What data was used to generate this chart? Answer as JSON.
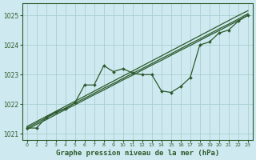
{
  "title": "Graphe pression niveau de la mer (hPa)",
  "background_color": "#ceeaf0",
  "grid_color": "#aacfcf",
  "line_color": "#2d5a2d",
  "xlim": [
    -0.5,
    23.5
  ],
  "ylim": [
    1020.8,
    1025.4
  ],
  "yticks": [
    1021,
    1022,
    1023,
    1024,
    1025
  ],
  "xticks": [
    0,
    1,
    2,
    3,
    4,
    5,
    6,
    7,
    8,
    9,
    10,
    11,
    12,
    13,
    14,
    15,
    16,
    17,
    18,
    19,
    20,
    21,
    22,
    23
  ],
  "trend1": [
    1021.15,
    1021.32,
    1021.48,
    1021.65,
    1021.82,
    1021.98,
    1022.15,
    1022.32,
    1022.48,
    1022.65,
    1022.82,
    1022.98,
    1023.15,
    1023.32,
    1023.48,
    1023.65,
    1023.82,
    1023.98,
    1024.15,
    1024.32,
    1024.48,
    1024.65,
    1024.82,
    1025.0
  ],
  "trend2": [
    1021.2,
    1021.37,
    1021.54,
    1021.7,
    1021.87,
    1022.04,
    1022.2,
    1022.37,
    1022.54,
    1022.7,
    1022.87,
    1023.04,
    1023.2,
    1023.37,
    1023.54,
    1023.7,
    1023.87,
    1024.04,
    1024.2,
    1024.37,
    1024.54,
    1024.7,
    1024.87,
    1025.05
  ],
  "trend3": [
    1021.25,
    1021.42,
    1021.59,
    1021.76,
    1021.93,
    1022.1,
    1022.27,
    1022.44,
    1022.61,
    1022.78,
    1022.95,
    1023.12,
    1023.29,
    1023.46,
    1023.63,
    1023.8,
    1023.97,
    1024.14,
    1024.31,
    1024.48,
    1024.65,
    1024.82,
    1024.99,
    1025.15
  ],
  "main_data": [
    1021.2,
    1021.2,
    1021.55,
    1021.75,
    1021.85,
    1022.05,
    1022.65,
    1022.65,
    1023.3,
    1023.1,
    1023.2,
    1023.05,
    1023.0,
    1023.0,
    1022.45,
    1022.4,
    1022.6,
    1022.9,
    1024.0,
    1024.1,
    1024.4,
    1024.5,
    1024.8,
    1025.0
  ]
}
